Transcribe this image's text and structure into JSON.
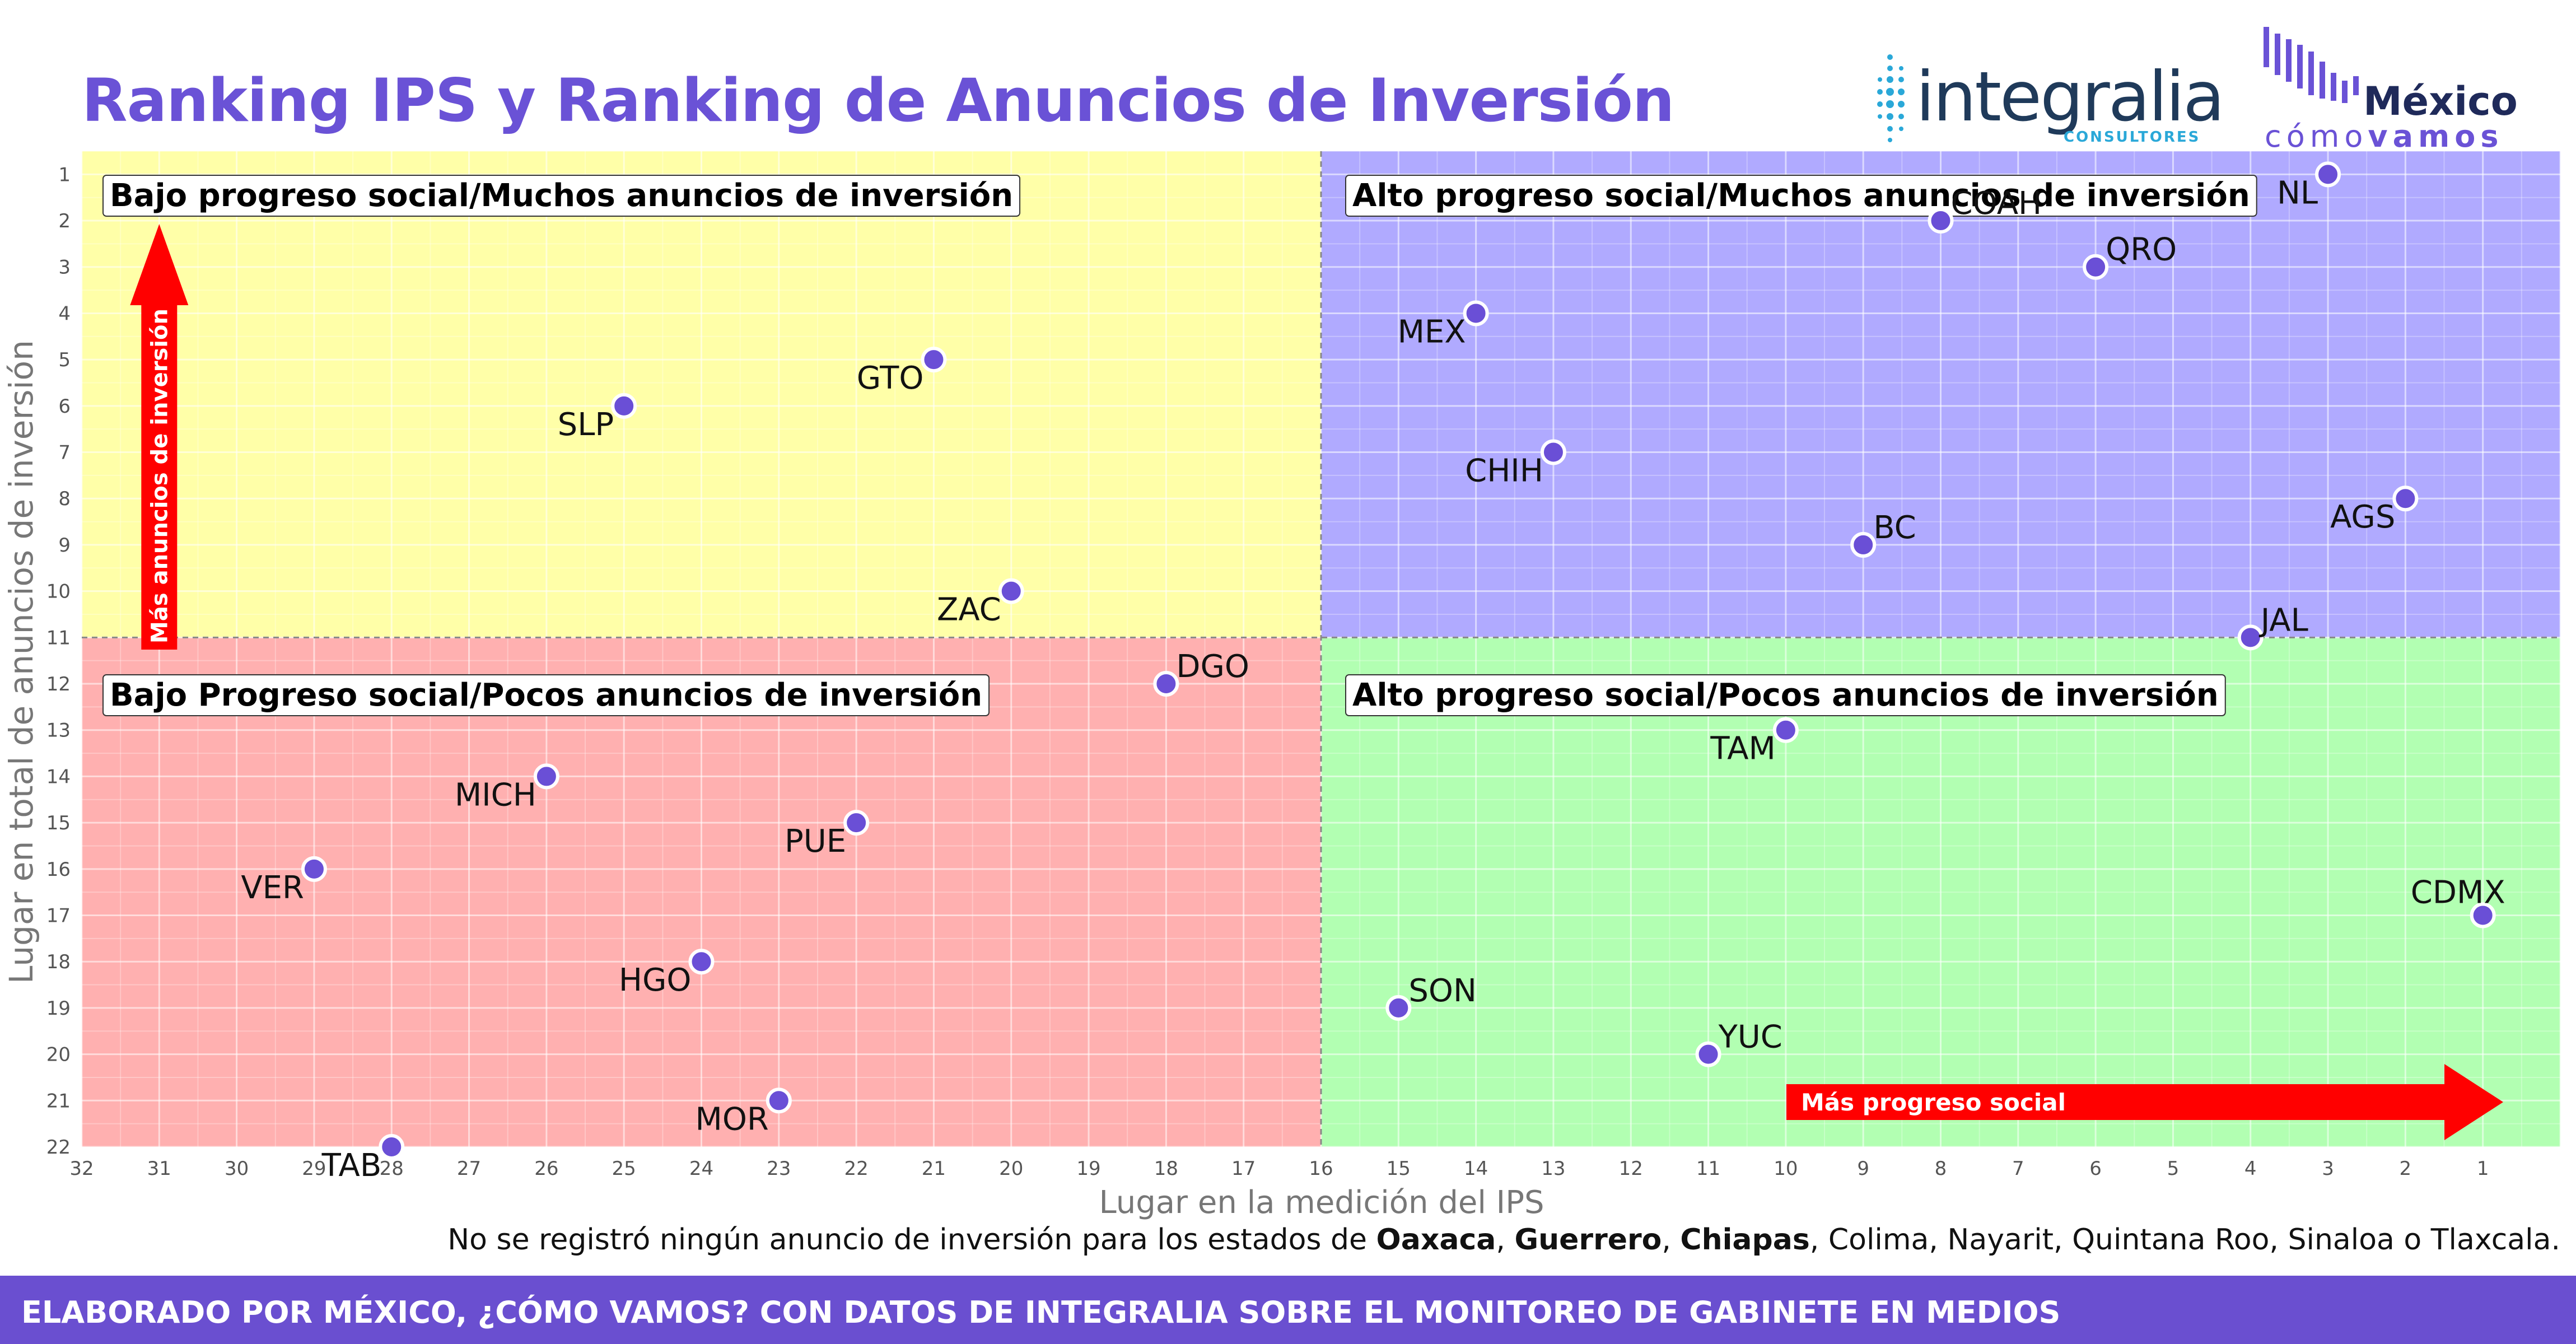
{
  "title": "Ranking IPS y Ranking de Anuncios de Inversión",
  "logos": {
    "integralia_word": "integralia",
    "integralia_sub": "CONSULTORES",
    "mcv_mexico": "México",
    "mcv_como": "cómo",
    "mcv_vamos": "vamos"
  },
  "note": {
    "prefix": "No se registró ningún anuncio de inversión para los estados de ",
    "bold1": "Oaxaca",
    "sep1": ", ",
    "bold2": "Guerrero",
    "sep2": ", ",
    "bold3": "Chiapas",
    "suffix": ", Colima, Nayarit, Quintana Roo, Sinaloa o Tlaxcala."
  },
  "footer": "ELABORADO POR MÉXICO, ¿CÓMO VAMOS? CON DATOS DE INTEGRALIA SOBRE EL MONITOREO DE GABINETE EN MEDIOS",
  "chart_data": {
    "type": "scatter",
    "title": "Ranking IPS y Ranking de Anuncios de Inversión",
    "xlabel": "Lugar en la medición del IPS",
    "ylabel": "Lugar en total de anuncios de inversión",
    "xlim": [
      32,
      0
    ],
    "ylim": [
      22,
      0.5
    ],
    "x_reversed": true,
    "y_reversed": true,
    "x_ticks": [
      32,
      31,
      30,
      29,
      28,
      27,
      26,
      25,
      24,
      23,
      22,
      21,
      20,
      19,
      18,
      17,
      16,
      15,
      14,
      13,
      12,
      11,
      10,
      9,
      8,
      7,
      6,
      5,
      4,
      3,
      2,
      1
    ],
    "y_ticks": [
      1,
      2,
      3,
      4,
      5,
      6,
      7,
      8,
      9,
      10,
      11,
      12,
      13,
      14,
      15,
      16,
      17,
      18,
      19,
      20,
      21,
      22
    ],
    "x_divider": 16,
    "y_divider": 11,
    "grid": true,
    "point_color": "#6a4fd6",
    "quadrants": [
      {
        "label": "Bajo progreso social/Muchos anuncios de inversión",
        "color": "#ffffa8",
        "position": "top-left"
      },
      {
        "label": "Alto progreso social/Muchos anuncios de inversión",
        "color": "#b0aaff",
        "position": "top-right"
      },
      {
        "label": "Bajo Progreso social/Pocos anuncios de inversión",
        "color": "#ffb0b0",
        "position": "bottom-left"
      },
      {
        "label": "Alto progreso social/Pocos anuncios de inversión",
        "color": "#b2ffb2",
        "position": "bottom-right"
      }
    ],
    "arrows": {
      "vertical": "Más anuncios de inversión",
      "horizontal": "Más progreso social",
      "color": "#ff0000"
    },
    "points": [
      {
        "label": "NL",
        "x": 3,
        "y": 1,
        "label_pos": "left"
      },
      {
        "label": "COAH",
        "x": 8,
        "y": 2,
        "label_pos": "right"
      },
      {
        "label": "QRO",
        "x": 6,
        "y": 3,
        "label_pos": "right"
      },
      {
        "label": "MEX",
        "x": 14,
        "y": 4,
        "label_pos": "left"
      },
      {
        "label": "GTO",
        "x": 21,
        "y": 5,
        "label_pos": "left"
      },
      {
        "label": "SLP",
        "x": 25,
        "y": 6,
        "label_pos": "left"
      },
      {
        "label": "CHIH",
        "x": 13,
        "y": 7,
        "label_pos": "left"
      },
      {
        "label": "AGS",
        "x": 2,
        "y": 8,
        "label_pos": "left"
      },
      {
        "label": "BC",
        "x": 9,
        "y": 9,
        "label_pos": "right"
      },
      {
        "label": "ZAC",
        "x": 20,
        "y": 10,
        "label_pos": "left"
      },
      {
        "label": "JAL",
        "x": 4,
        "y": 11,
        "label_pos": "right"
      },
      {
        "label": "DGO",
        "x": 18,
        "y": 12,
        "label_pos": "right"
      },
      {
        "label": "TAM",
        "x": 10,
        "y": 13,
        "label_pos": "left"
      },
      {
        "label": "MICH",
        "x": 26,
        "y": 14,
        "label_pos": "left"
      },
      {
        "label": "PUE",
        "x": 22,
        "y": 15,
        "label_pos": "left"
      },
      {
        "label": "VER",
        "x": 29,
        "y": 16,
        "label_pos": "left"
      },
      {
        "label": "CDMX",
        "x": 1,
        "y": 17,
        "label_pos": "above"
      },
      {
        "label": "HGO",
        "x": 24,
        "y": 18,
        "label_pos": "left"
      },
      {
        "label": "SON",
        "x": 15,
        "y": 19,
        "label_pos": "right"
      },
      {
        "label": "YUC",
        "x": 11,
        "y": 20,
        "label_pos": "right"
      },
      {
        "label": "MOR",
        "x": 23,
        "y": 21,
        "label_pos": "left"
      },
      {
        "label": "TAB",
        "x": 28,
        "y": 22,
        "label_pos": "left"
      }
    ]
  }
}
